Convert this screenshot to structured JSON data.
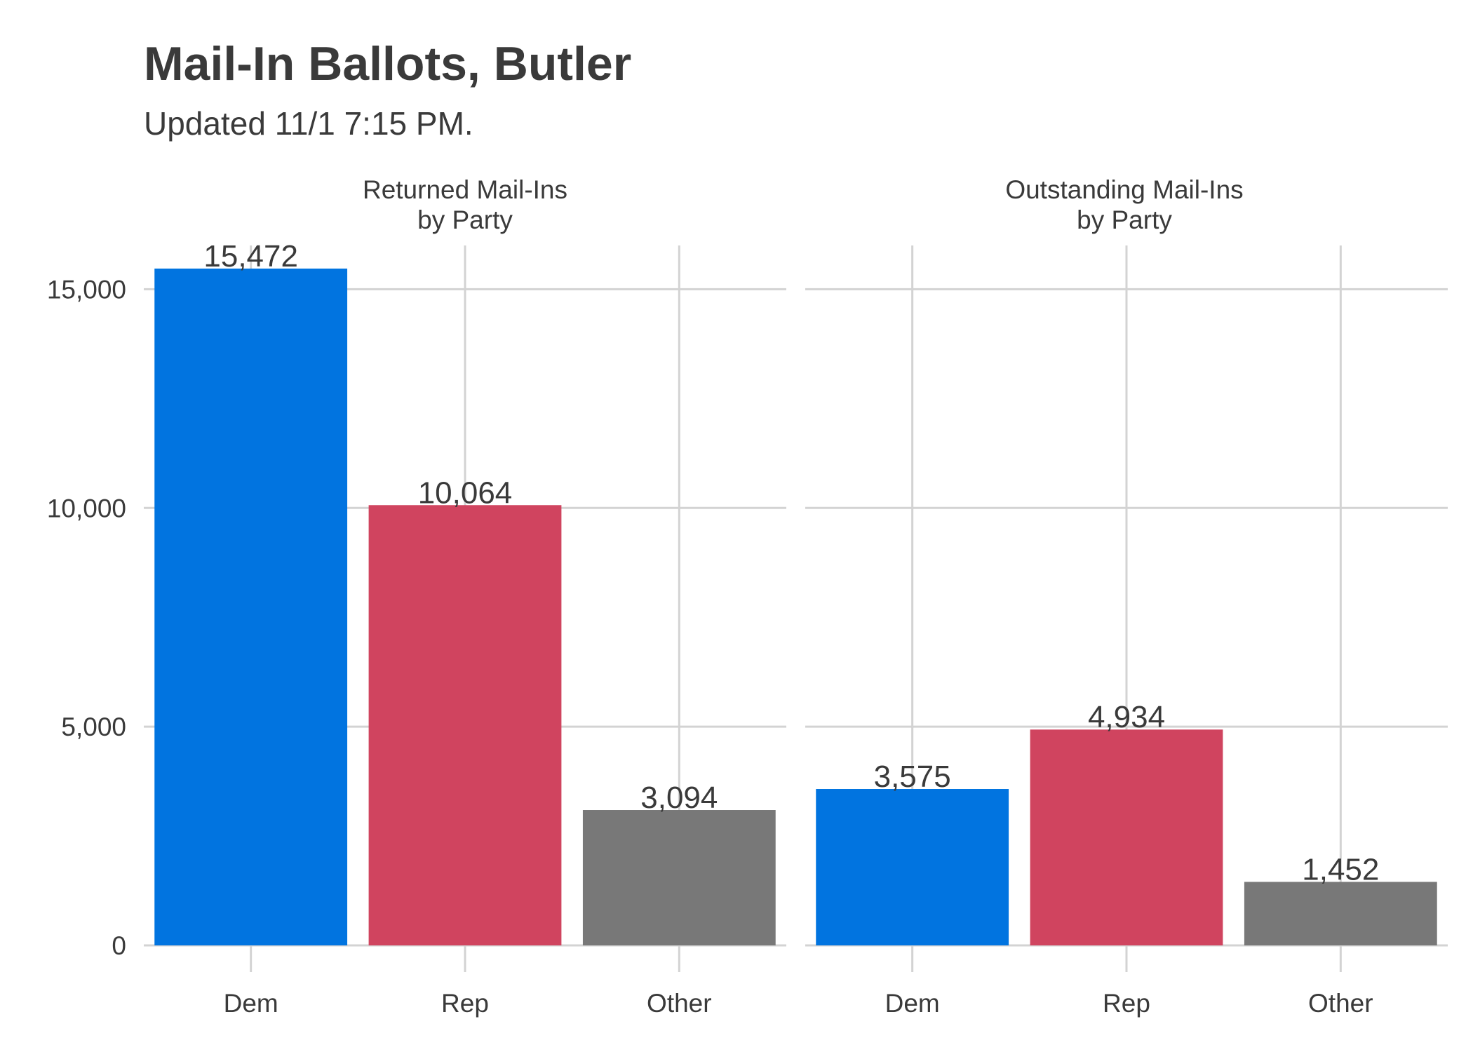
{
  "chart_data": {
    "type": "bar",
    "title": "Mail-In Ballots, Butler",
    "subtitle": "Updated 11/1 7:15 PM.",
    "categories": [
      "Dem",
      "Rep",
      "Other"
    ],
    "colors": {
      "Dem": "#0174e0",
      "Rep": "#d0445f",
      "Other": "#787878"
    },
    "ylim": [
      0,
      16000
    ],
    "yticks": [
      0,
      5000,
      10000,
      15000
    ],
    "ytick_labels": [
      "0",
      "5,000",
      "10,000",
      "15,000"
    ],
    "grid": true,
    "facets": [
      {
        "title_line1": "Returned Mail-Ins",
        "title_line2": "by Party",
        "values": [
          15472,
          10064,
          3094
        ],
        "labels": [
          "15,472",
          "10,064",
          "3,094"
        ]
      },
      {
        "title_line1": "Outstanding Mail-Ins",
        "title_line2": "by Party",
        "values": [
          3575,
          4934,
          1452
        ],
        "labels": [
          "3,575",
          "4,934",
          "1,452"
        ]
      }
    ]
  }
}
